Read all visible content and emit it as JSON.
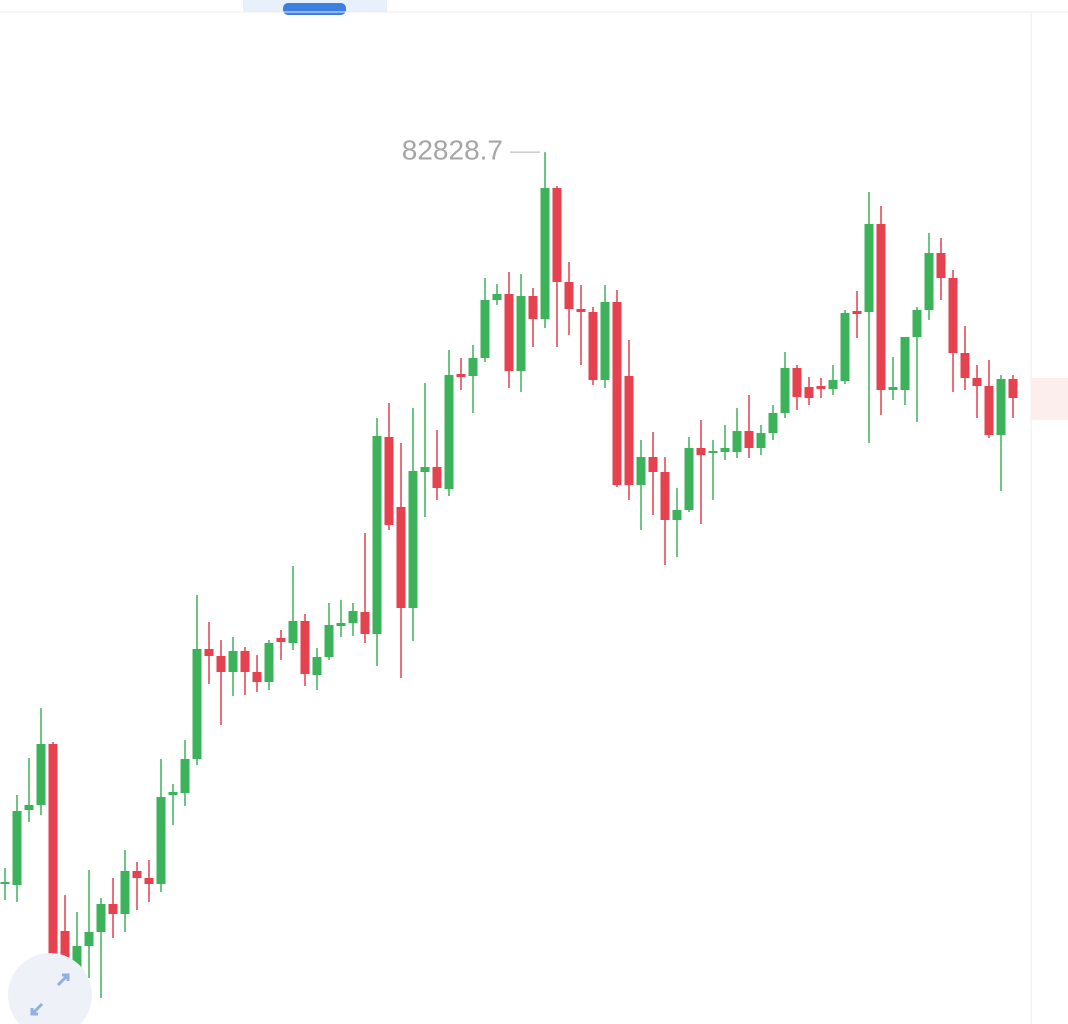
{
  "chart_data": {
    "type": "candlestick",
    "up_color": "#3cb35a",
    "down_color": "#e5414f",
    "ylim": [
      74110,
      84350
    ],
    "open": [
      75510,
      75500,
      76250,
      76300,
      76910,
      75040,
      74630,
      74890,
      75030,
      75310,
      75210,
      75640,
      75570,
      75510,
      76400,
      76420,
      76760,
      77860,
      77790,
      77630,
      77840,
      77630,
      77530,
      77970,
      77920,
      78140,
      77600,
      77780,
      78090,
      78120,
      78230,
      78010,
      79980,
      79280,
      78270,
      79630,
      79680,
      79460,
      80610,
      80590,
      80770,
      81350,
      81410,
      80640,
      81390,
      81160,
      82470,
      81530,
      81260,
      81230,
      80550,
      81330,
      80590,
      79500,
      79780,
      79630,
      79150,
      79250,
      79870,
      79820,
      79830,
      79830,
      80040,
      79870,
      80020,
      80220,
      80670,
      80480,
      80490,
      80460,
      80540,
      81240,
      81230,
      82110,
      80450,
      80450,
      80980,
      81250,
      81820,
      81570,
      80820,
      80570,
      80490,
      80000,
      80560
    ],
    "high": [
      75670,
      76400,
      76770,
      77270,
      76930,
      75400,
      75230,
      75650,
      75370,
      75570,
      75850,
      75730,
      75750,
      76760,
      76510,
      76950,
      78400,
      78130,
      77950,
      77980,
      77880,
      77800,
      77950,
      78050,
      78690,
      78210,
      77870,
      78320,
      78350,
      78320,
      79020,
      80170,
      80320,
      79920,
      80270,
      80520,
      80050,
      80850,
      80770,
      80900,
      81570,
      81510,
      81630,
      81610,
      81470,
      82828.7,
      82490,
      81730,
      81500,
      81280,
      81500,
      81450,
      80950,
      79950,
      80030,
      79780,
      79470,
      79980,
      80150,
      79950,
      80100,
      80270,
      80400,
      80100,
      80300,
      80830,
      80700,
      80580,
      80570,
      80700,
      81250,
      81440,
      82430,
      82290,
      80780,
      80980,
      81280,
      82020,
      81970,
      81650,
      81090,
      80700,
      80750,
      80600,
      80600
    ],
    "low": [
      75350,
      75330,
      76130,
      76200,
      74630,
      74130,
      74500,
      74570,
      74370,
      74970,
      75030,
      75250,
      75330,
      75430,
      76100,
      76290,
      76700,
      77510,
      77100,
      77390,
      77400,
      77430,
      77450,
      77750,
      77850,
      77490,
      77450,
      77750,
      77980,
      77990,
      77920,
      77690,
      79050,
      77570,
      77940,
      79180,
      79350,
      79390,
      80450,
      80220,
      80730,
      81300,
      80470,
      80430,
      80880,
      81070,
      80880,
      81000,
      80700,
      80500,
      80470,
      79480,
      79350,
      79050,
      79200,
      78700,
      78780,
      79230,
      79110,
      79350,
      79750,
      79770,
      79770,
      79800,
      79950,
      80170,
      80250,
      80300,
      80370,
      80400,
      80510,
      80970,
      79920,
      80200,
      80350,
      80300,
      80130,
      81150,
      81350,
      80430,
      80450,
      80170,
      79970,
      79440,
      80170
    ],
    "close": [
      75530,
      76240,
      76300,
      76910,
      74800,
      74630,
      74890,
      75030,
      75310,
      75210,
      75640,
      75570,
      75510,
      76380,
      76430,
      76760,
      77860,
      77790,
      77630,
      77840,
      77630,
      77530,
      77920,
      77930,
      78140,
      77610,
      77780,
      78100,
      78120,
      78240,
      78010,
      79990,
      79100,
      78270,
      79640,
      79680,
      79470,
      80600,
      80580,
      80770,
      81350,
      81410,
      80640,
      81390,
      81160,
      82470,
      81530,
      81260,
      81230,
      80550,
      81330,
      79500,
      79500,
      79780,
      79630,
      79150,
      79250,
      79870,
      79800,
      79840,
      79870,
      80040,
      79870,
      80020,
      80220,
      80670,
      80380,
      80370,
      80460,
      80550,
      81220,
      81210,
      82110,
      80450,
      80480,
      80980,
      81250,
      81820,
      81570,
      80820,
      80570,
      80490,
      80000,
      80560,
      80370
    ]
  }
}
